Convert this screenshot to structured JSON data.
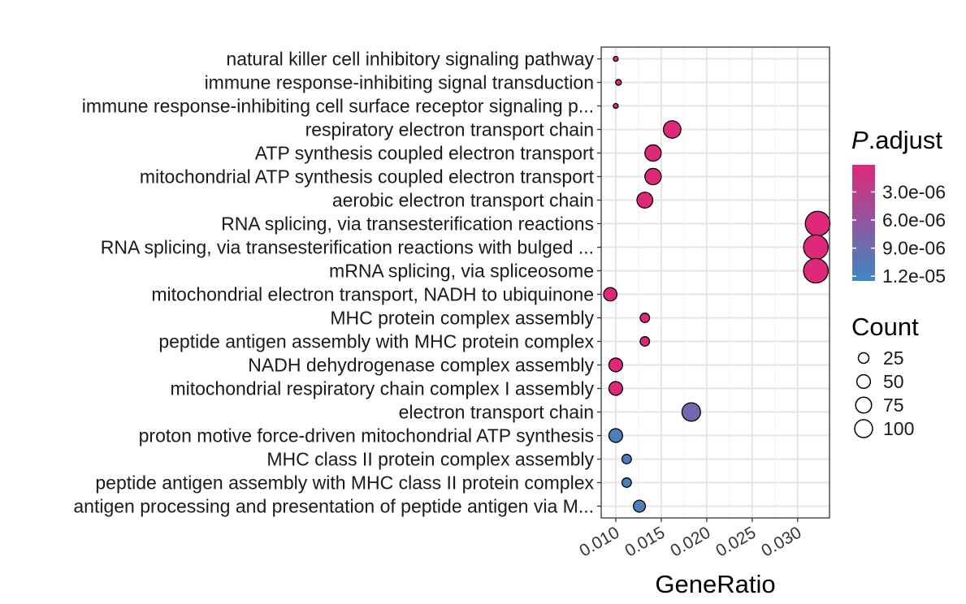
{
  "chart_data": {
    "type": "scatter",
    "xlabel": "GeneRatio",
    "xlim": [
      0.0084,
      0.0335
    ],
    "x_ticks": [
      0.01,
      0.015,
      0.02,
      0.025,
      0.03
    ],
    "x_tick_labels": [
      "0.010",
      "0.015",
      "0.020",
      "0.025",
      "0.030"
    ],
    "grid": true,
    "points": [
      {
        "term": "natural killer cell inhibitory signaling pathway",
        "x": 0.01,
        "count": 4,
        "p_adjust": 1e-07
      },
      {
        "term": "immune response-inhibiting signal transduction",
        "x": 0.0103,
        "count": 6,
        "p_adjust": 1e-07
      },
      {
        "term": "immune response-inhibiting cell surface receptor signaling p...",
        "x": 0.01,
        "count": 4,
        "p_adjust": 1e-07
      },
      {
        "term": "respiratory electron transport chain",
        "x": 0.0162,
        "count": 55,
        "p_adjust": 1e-07
      },
      {
        "term": "ATP synthesis coupled electron transport",
        "x": 0.0141,
        "count": 48,
        "p_adjust": 1e-07
      },
      {
        "term": "mitochondrial ATP synthesis coupled electron transport",
        "x": 0.0141,
        "count": 48,
        "p_adjust": 1e-07
      },
      {
        "term": "aerobic electron transport chain",
        "x": 0.0132,
        "count": 45,
        "p_adjust": 1e-07
      },
      {
        "term": "RNA splicing, via transesterification reactions",
        "x": 0.0322,
        "count": 110,
        "p_adjust": 1e-07
      },
      {
        "term": "RNA splicing, via transesterification reactions with bulged ...",
        "x": 0.032,
        "count": 109,
        "p_adjust": 1e-07
      },
      {
        "term": "mRNA splicing, via spliceosome",
        "x": 0.032,
        "count": 109,
        "p_adjust": 1e-07
      },
      {
        "term": "mitochondrial electron transport, NADH to ubiquinone",
        "x": 0.0094,
        "count": 32,
        "p_adjust": 1e-07
      },
      {
        "term": "MHC protein complex assembly",
        "x": 0.0132,
        "count": 16,
        "p_adjust": 1e-07
      },
      {
        "term": "peptide antigen assembly with MHC protein complex",
        "x": 0.0132,
        "count": 16,
        "p_adjust": 1e-07
      },
      {
        "term": "NADH dehydrogenase complex assembly",
        "x": 0.01,
        "count": 34,
        "p_adjust": 1e-07
      },
      {
        "term": "mitochondrial respiratory chain complex I assembly",
        "x": 0.01,
        "count": 34,
        "p_adjust": 1e-07
      },
      {
        "term": "electron transport chain",
        "x": 0.0183,
        "count": 62,
        "p_adjust": 8.5e-06
      },
      {
        "term": "proton motive force-driven mitochondrial ATP synthesis",
        "x": 0.01,
        "count": 34,
        "p_adjust": 1.15e-05
      },
      {
        "term": "MHC class II protein complex assembly",
        "x": 0.0112,
        "count": 16,
        "p_adjust": 1.15e-05
      },
      {
        "term": "peptide antigen assembly with MHC class II protein complex",
        "x": 0.0112,
        "count": 16,
        "p_adjust": 1.15e-05
      },
      {
        "term": "antigen processing and presentation of peptide antigen via M...",
        "x": 0.0126,
        "count": 26,
        "p_adjust": 1.1e-05
      }
    ],
    "color_legend": {
      "title_italic": "P",
      "title_rest": ".adjust",
      "low_color": "#e0287a",
      "high_color": "#3d87c4",
      "range": [
        1e-07,
        1.25e-05
      ],
      "ticks": [
        3e-06,
        6e-06,
        9e-06,
        1.2e-05
      ],
      "tick_labels": [
        "3.0e-06",
        "6.0e-06",
        "9.0e-06",
        "1.2e-05"
      ]
    },
    "size_legend": {
      "title": "Count",
      "counts": [
        25,
        50,
        75,
        100
      ],
      "labels": [
        "25",
        "50",
        "75",
        "100"
      ]
    }
  }
}
